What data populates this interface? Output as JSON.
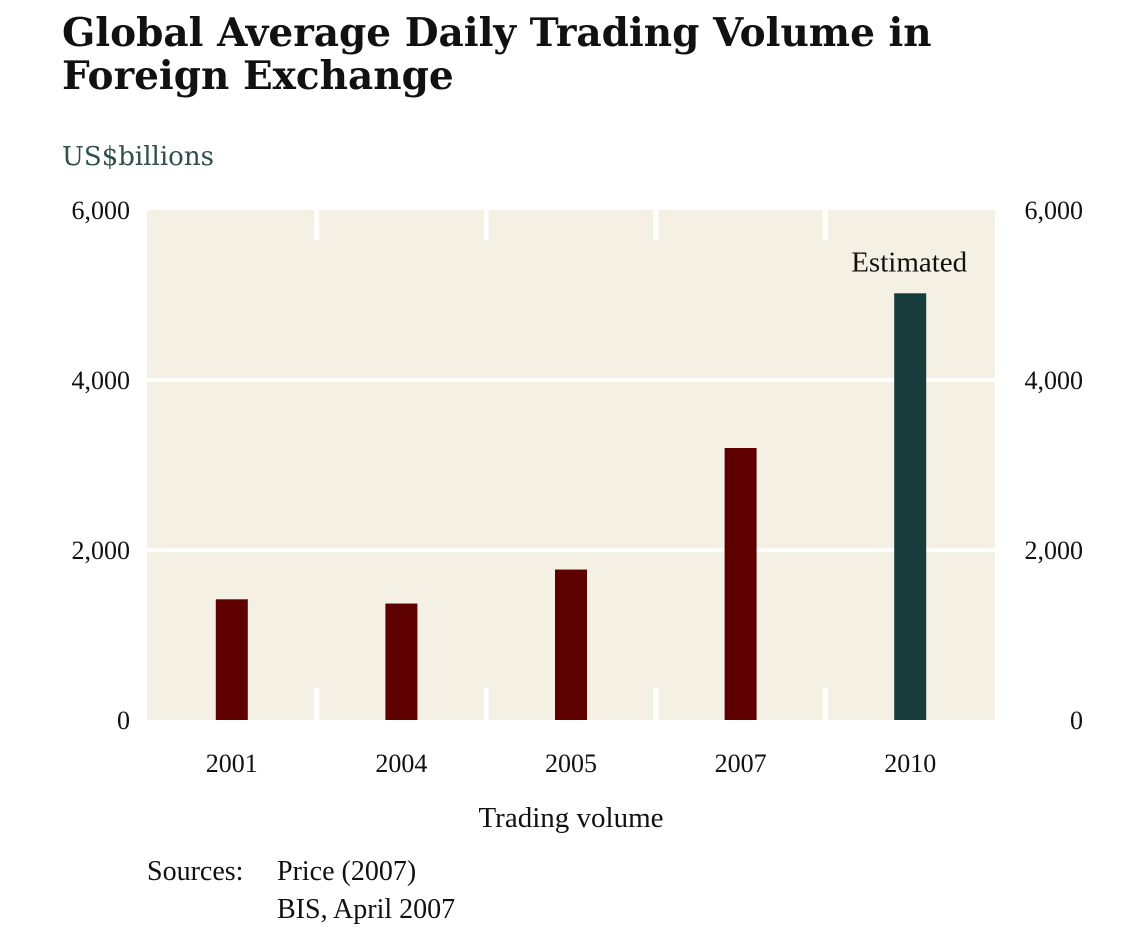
{
  "title": "Global Average Daily Trading Volume in Foreign Exchange",
  "units": "US$billions",
  "sources": {
    "label": "Sources:",
    "lines": [
      "Price (2007)",
      "BIS, April 2007"
    ]
  },
  "colors": {
    "plot_bg": "#f4f0e3",
    "bar": "#5e0000",
    "bar_estimated": "#163d3b",
    "grid": "#ffffff",
    "units_text": "#2f4f4a"
  },
  "chart_data": {
    "type": "bar",
    "title": "Global Average Daily Trading Volume in Foreign Exchange",
    "ylabel": "US$billions",
    "xlabel": "Trading volume",
    "categories": [
      "2001",
      "2004",
      "2005",
      "2007",
      "2010"
    ],
    "values": [
      1420,
      1370,
      1770,
      3200,
      5020
    ],
    "estimated": [
      false,
      false,
      false,
      false,
      true
    ],
    "annotation": "Estimated",
    "ylim": [
      0,
      6000
    ],
    "yticks": [
      0,
      2000,
      4000,
      6000
    ],
    "ytick_labels": [
      "0",
      "2,000",
      "4,000",
      "6,000"
    ],
    "grid": true
  }
}
